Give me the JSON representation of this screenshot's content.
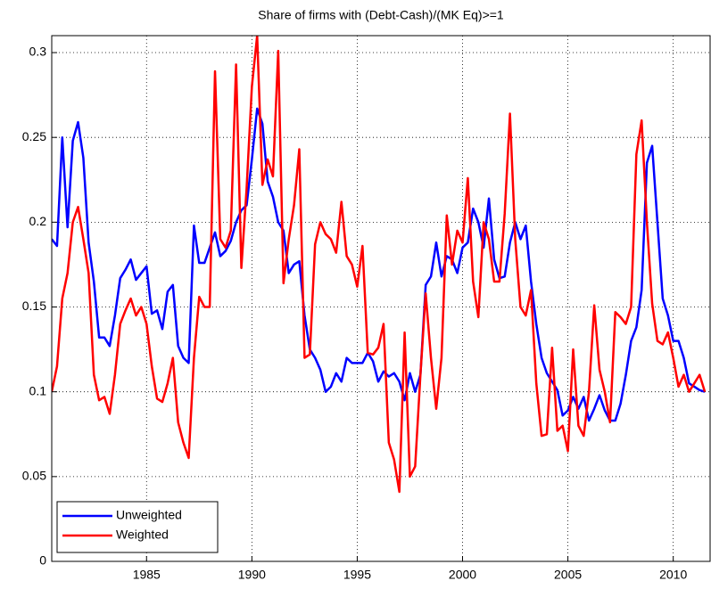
{
  "chart_data": {
    "type": "line",
    "title": "Share of firms with (Debt-Cash)/(MK Eq)>=1",
    "x": [
      1980.5,
      1980.75,
      1981,
      1981.25,
      1981.5,
      1981.75,
      1982,
      1982.25,
      1982.5,
      1982.75,
      1983,
      1983.25,
      1983.5,
      1983.75,
      1984,
      1984.25,
      1984.5,
      1984.75,
      1985,
      1985.25,
      1985.5,
      1985.75,
      1986,
      1986.25,
      1986.5,
      1986.75,
      1987,
      1987.25,
      1987.5,
      1987.75,
      1988,
      1988.25,
      1988.5,
      1988.75,
      1989,
      1989.25,
      1989.5,
      1989.75,
      1990,
      1990.25,
      1990.5,
      1990.75,
      1991,
      1991.25,
      1991.5,
      1991.75,
      1992,
      1992.25,
      1992.5,
      1992.75,
      1993,
      1993.25,
      1993.5,
      1993.75,
      1994,
      1994.25,
      1994.5,
      1994.75,
      1995,
      1995.25,
      1995.5,
      1995.75,
      1996,
      1996.25,
      1996.5,
      1996.75,
      1997,
      1997.25,
      1997.5,
      1997.75,
      1998,
      1998.25,
      1998.5,
      1998.75,
      1999,
      1999.25,
      1999.5,
      1999.75,
      2000,
      2000.25,
      2000.5,
      2000.75,
      2001,
      2001.25,
      2001.5,
      2001.75,
      2002,
      2002.25,
      2002.5,
      2002.75,
      2003,
      2003.25,
      2003.5,
      2003.75,
      2004,
      2004.25,
      2004.5,
      2004.75,
      2005,
      2005.25,
      2005.5,
      2005.75,
      2006,
      2006.25,
      2006.5,
      2006.75,
      2007,
      2007.25,
      2007.5,
      2007.75,
      2008,
      2008.25,
      2008.5,
      2008.75,
      2009,
      2009.25,
      2009.5,
      2009.75,
      2010,
      2010.25,
      2010.5,
      2010.75,
      2011,
      2011.25,
      2011.5
    ],
    "series": [
      {
        "name": "Unweighted",
        "color": "#0000ff",
        "values": [
          0.19,
          0.186,
          0.25,
          0.197,
          0.248,
          0.259,
          0.238,
          0.188,
          0.165,
          0.132,
          0.132,
          0.127,
          0.145,
          0.167,
          0.172,
          0.178,
          0.166,
          0.17,
          0.174,
          0.146,
          0.148,
          0.137,
          0.159,
          0.163,
          0.127,
          0.12,
          0.117,
          0.198,
          0.176,
          0.176,
          0.185,
          0.194,
          0.18,
          0.183,
          0.189,
          0.2,
          0.207,
          0.21,
          0.237,
          0.267,
          0.258,
          0.224,
          0.215,
          0.2,
          0.195,
          0.17,
          0.175,
          0.177,
          0.145,
          0.125,
          0.12,
          0.113,
          0.1,
          0.103,
          0.111,
          0.106,
          0.12,
          0.117,
          0.117,
          0.117,
          0.123,
          0.118,
          0.106,
          0.112,
          0.109,
          0.111,
          0.106,
          0.095,
          0.111,
          0.1,
          0.11,
          0.163,
          0.168,
          0.188,
          0.168,
          0.18,
          0.178,
          0.17,
          0.185,
          0.188,
          0.208,
          0.2,
          0.185,
          0.214,
          0.178,
          0.167,
          0.168,
          0.188,
          0.2,
          0.19,
          0.198,
          0.165,
          0.14,
          0.12,
          0.111,
          0.106,
          0.101,
          0.086,
          0.089,
          0.097,
          0.09,
          0.097,
          0.083,
          0.09,
          0.098,
          0.089,
          0.083,
          0.083,
          0.093,
          0.11,
          0.13,
          0.138,
          0.16,
          0.235,
          0.245,
          0.2,
          0.155,
          0.145,
          0.13,
          0.13,
          0.12,
          0.105,
          0.103,
          0.101,
          0.1
        ]
      },
      {
        "name": "Weighted",
        "color": "#ff0000",
        "values": [
          0.1,
          0.115,
          0.155,
          0.17,
          0.2,
          0.209,
          0.19,
          0.17,
          0.11,
          0.095,
          0.097,
          0.087,
          0.11,
          0.14,
          0.148,
          0.155,
          0.145,
          0.15,
          0.14,
          0.115,
          0.096,
          0.094,
          0.105,
          0.12,
          0.082,
          0.07,
          0.061,
          0.12,
          0.156,
          0.15,
          0.15,
          0.289,
          0.19,
          0.185,
          0.195,
          0.293,
          0.173,
          0.22,
          0.28,
          0.31,
          0.222,
          0.237,
          0.227,
          0.301,
          0.164,
          0.19,
          0.21,
          0.243,
          0.12,
          0.122,
          0.187,
          0.2,
          0.193,
          0.19,
          0.182,
          0.212,
          0.18,
          0.175,
          0.162,
          0.186,
          0.123,
          0.122,
          0.126,
          0.14,
          0.07,
          0.06,
          0.041,
          0.135,
          0.05,
          0.056,
          0.11,
          0.158,
          0.12,
          0.09,
          0.12,
          0.204,
          0.175,
          0.195,
          0.188,
          0.226,
          0.165,
          0.144,
          0.2,
          0.19,
          0.165,
          0.165,
          0.205,
          0.264,
          0.19,
          0.15,
          0.145,
          0.16,
          0.105,
          0.074,
          0.075,
          0.126,
          0.077,
          0.08,
          0.065,
          0.125,
          0.08,
          0.074,
          0.1,
          0.151,
          0.113,
          0.1,
          0.082,
          0.147,
          0.144,
          0.14,
          0.15,
          0.24,
          0.26,
          0.2,
          0.152,
          0.13,
          0.128,
          0.135,
          0.12,
          0.103,
          0.11,
          0.1,
          0.105,
          0.11,
          0.1
        ]
      }
    ],
    "xlim": [
      1980.5,
      2011.75
    ],
    "ylim": [
      0,
      0.31
    ],
    "xticks": [
      1985,
      1990,
      1995,
      2000,
      2005,
      2010
    ],
    "yticks": [
      0,
      0.05,
      0.1,
      0.15,
      0.2,
      0.25,
      0.3
    ],
    "grid": true,
    "legend_location": "southwest"
  }
}
